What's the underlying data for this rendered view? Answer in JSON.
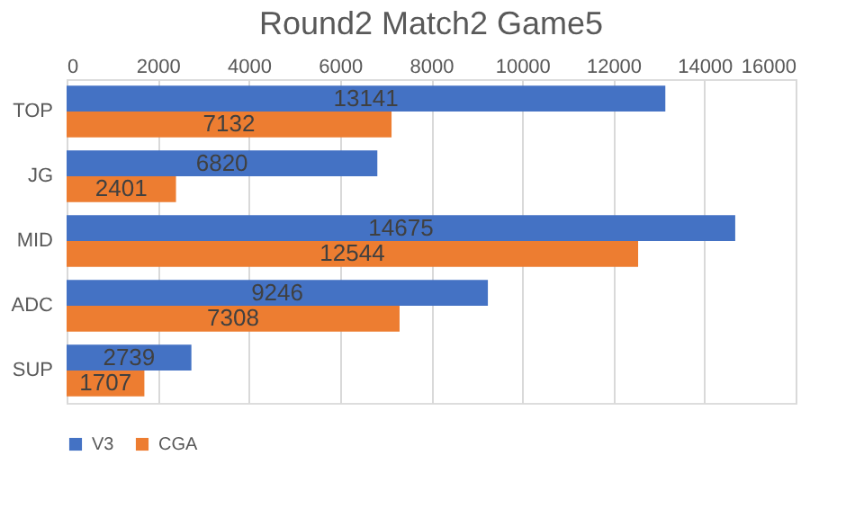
{
  "chart_data": {
    "type": "bar",
    "orientation": "horizontal",
    "title": "Round2 Match2 Game5",
    "categories": [
      "TOP",
      "JG",
      "MID",
      "ADC",
      "SUP"
    ],
    "series": [
      {
        "name": "V3",
        "color": "#4472c4",
        "values": [
          13141,
          6820,
          14675,
          9246,
          2739
        ]
      },
      {
        "name": "CGA",
        "color": "#ed7d31",
        "values": [
          7132,
          2401,
          12544,
          7308,
          1707
        ]
      }
    ],
    "xlim": [
      0,
      16000
    ],
    "xticks": [
      0,
      2000,
      4000,
      6000,
      8000,
      10000,
      12000,
      14000,
      16000
    ],
    "grid": "x",
    "legend": "bottom",
    "data_labels": true
  }
}
